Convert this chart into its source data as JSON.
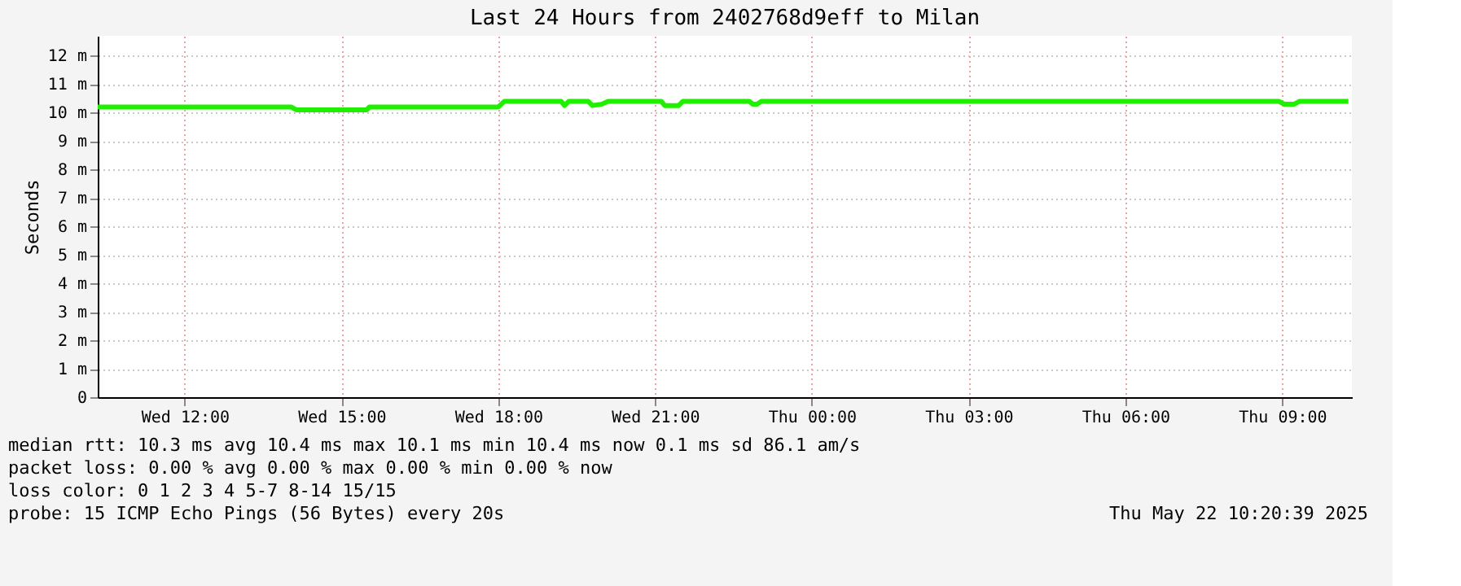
{
  "chart_data": {
    "type": "line",
    "title": "Last 24 Hours from 2402768d9eff to Milan",
    "ylabel": "Seconds",
    "x": [
      "2025-05-21T10:20",
      "2025-05-21T14:02",
      "2025-05-21T14:08",
      "2025-05-21T15:29",
      "2025-05-21T15:32",
      "2025-05-21T18:00",
      "2025-05-21T18:07",
      "2025-05-21T19:12",
      "2025-05-21T19:16",
      "2025-05-21T19:21",
      "2025-05-21T19:43",
      "2025-05-21T19:48",
      "2025-05-21T19:59",
      "2025-05-21T20:06",
      "2025-05-21T21:07",
      "2025-05-21T21:11",
      "2025-05-21T21:27",
      "2025-05-21T21:32",
      "2025-05-21T22:48",
      "2025-05-21T22:52",
      "2025-05-21T22:57",
      "2025-05-21T23:02",
      "2025-05-22T08:56",
      "2025-05-22T09:02",
      "2025-05-22T09:14",
      "2025-05-22T09:20",
      "2025-05-22T10:16"
    ],
    "series": [
      {
        "color": "#20f000",
        "values": [
          10.2,
          10.2,
          10.1,
          10.1,
          10.2,
          10.2,
          10.4,
          10.4,
          10.25,
          10.4,
          10.4,
          10.25,
          10.3,
          10.4,
          10.4,
          10.25,
          10.25,
          10.4,
          10.4,
          10.3,
          10.3,
          10.4,
          10.4,
          10.3,
          10.3,
          10.4,
          10.4
        ]
      }
    ],
    "xlim": [
      "2025-05-21T10:20",
      "2025-05-22T10:20"
    ],
    "xticks": [
      {
        "value": "2025-05-21T12:00",
        "label": "Wed 12:00"
      },
      {
        "value": "2025-05-21T15:00",
        "label": "Wed 15:00"
      },
      {
        "value": "2025-05-21T18:00",
        "label": "Wed 18:00"
      },
      {
        "value": "2025-05-21T21:00",
        "label": "Wed 21:00"
      },
      {
        "value": "2025-05-22T00:00",
        "label": "Thu 00:00"
      },
      {
        "value": "2025-05-22T03:00",
        "label": "Thu 03:00"
      },
      {
        "value": "2025-05-22T06:00",
        "label": "Thu 06:00"
      },
      {
        "value": "2025-05-22T09:00",
        "label": "Thu 09:00"
      }
    ],
    "ylim": [
      0,
      12.7
    ],
    "yticks": [
      0,
      {
        "value": 1,
        "label": "1 m"
      },
      {
        "value": 2,
        "label": "2 m"
      },
      {
        "value": 3,
        "label": "3 m"
      },
      {
        "value": 4,
        "label": "4 m"
      },
      {
        "value": 5,
        "label": "5 m"
      },
      {
        "value": 6,
        "label": "6 m"
      },
      {
        "value": 7,
        "label": "7 m"
      },
      {
        "value": 8,
        "label": "8 m"
      },
      {
        "value": 9,
        "label": "9 m"
      },
      {
        "value": 10,
        "label": "10 m"
      },
      {
        "value": 11,
        "label": "11 m"
      },
      {
        "value": 12,
        "label": "12 m"
      }
    ],
    "grid": true,
    "legend": false,
    "marker": "none",
    "line_style": "solid",
    "annotations": [
      "median rtt:  10.3 ms avg  10.4 ms max  10.1 ms min  10.4 ms now  0.1 ms sd  86.1   am/s",
      "packet loss: 0.00 % avg  0.00 % max  0.00 % min  0.00 % now",
      "loss color:  0  1  2  3  4  5-7  8-14  15/15",
      "probe:       15 ICMP Echo Pings (56 Bytes) every 20s",
      "Thu May 22 10:20:39 2025"
    ]
  }
}
